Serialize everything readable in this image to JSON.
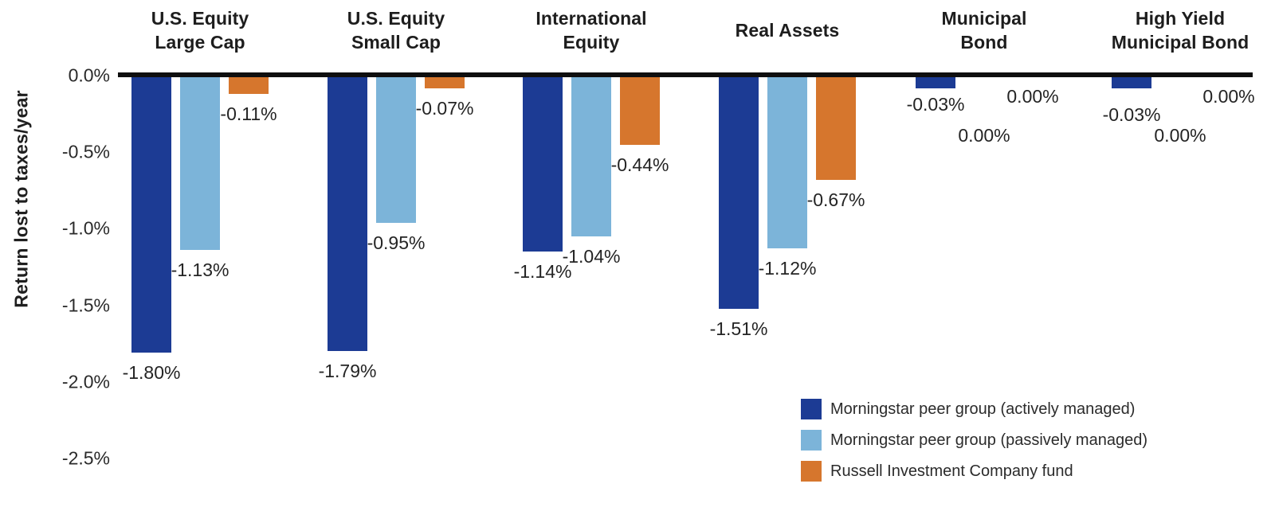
{
  "chart_data": {
    "type": "bar",
    "title": "",
    "ylabel": "Return lost to taxes/year",
    "ylim": [
      -2.5,
      0
    ],
    "grid": false,
    "legend_position": "bottom-right",
    "yticks": [
      {
        "label": "0.0%",
        "value": 0
      },
      {
        "label": "-0.5%",
        "value": -0.5
      },
      {
        "label": "-1.0%",
        "value": -1.0
      },
      {
        "label": "-1.5%",
        "value": -1.5
      },
      {
        "label": "-2.0%",
        "value": -2.0
      },
      {
        "label": "-2.5%",
        "value": -2.5
      }
    ],
    "categories": [
      {
        "name": "U.S. Equity Large Cap",
        "lines": [
          "U.S. Equity",
          "Large Cap"
        ]
      },
      {
        "name": "U.S. Equity Small Cap",
        "lines": [
          "U.S. Equity",
          "Small Cap"
        ]
      },
      {
        "name": "International Equity",
        "lines": [
          "International",
          "Equity"
        ]
      },
      {
        "name": "Real Assets",
        "lines": [
          "Real Assets"
        ]
      },
      {
        "name": "Municipal Bond",
        "lines": [
          "Municipal",
          "Bond"
        ]
      },
      {
        "name": "High Yield Municipal Bond",
        "lines": [
          "High Yield",
          "Municipal Bond"
        ]
      }
    ],
    "series": [
      {
        "name": "Morningstar peer group (actively managed)",
        "color": "#1c3b94",
        "values": [
          -1.8,
          -1.79,
          -1.14,
          -1.51,
          -0.03,
          -0.03
        ],
        "labels": [
          "-1.80%",
          "-1.79%",
          "-1.14%",
          "-1.51%",
          "-0.03%",
          "-0.03%"
        ],
        "label_y_overrides": {
          "4": 118,
          "5": 131
        }
      },
      {
        "name": "Morningstar peer group (passively managed)",
        "color": "#7cb4d9",
        "values": [
          -1.13,
          -0.95,
          -1.04,
          -1.12,
          0,
          0
        ],
        "labels": [
          "-1.13%",
          "-0.95%",
          "-1.04%",
          "-1.12%",
          "0.00%",
          "0.00%"
        ],
        "label_y_overrides": {
          "4": 157,
          "5": 157
        }
      },
      {
        "name": "Russell Investment Company fund",
        "color": "#d6762d",
        "values": [
          -0.11,
          -0.07,
          -0.44,
          -0.67,
          0,
          0
        ],
        "labels": [
          "-0.11%",
          "-0.07%",
          "-0.44%",
          "-0.67%",
          "0.00%",
          "0.00%"
        ],
        "label_y_overrides": {
          "4": 108,
          "5": 108
        }
      }
    ]
  }
}
